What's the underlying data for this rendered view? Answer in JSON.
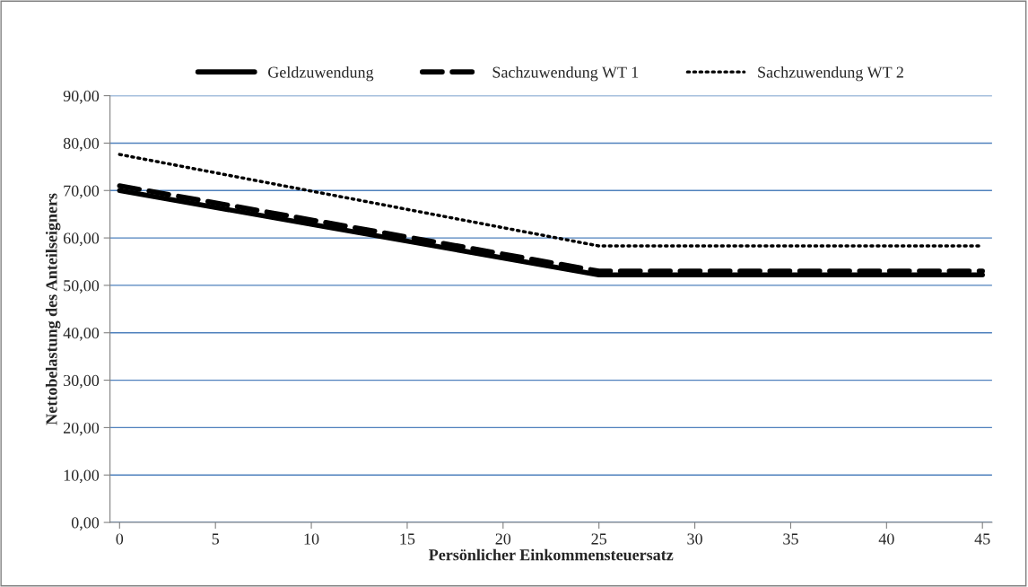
{
  "chart_data": {
    "type": "line",
    "xlabel": "Persönlicher Einkommensteuersatz",
    "ylabel": "Nettobelastung des Anteilseigners",
    "x": [
      0,
      25,
      45
    ],
    "series": [
      {
        "name": "Geldzuwendung",
        "color": "#000000",
        "line_style": "solid",
        "values": [
          70.0,
          52.2,
          52.2
        ]
      },
      {
        "name": "Sachzuwendung WT 1",
        "color": "#000000",
        "line_style": "dashed",
        "values": [
          71.0,
          53.0,
          53.0
        ]
      },
      {
        "name": "Sachzuwendung WT 2",
        "color": "#000000",
        "line_style": "dotted",
        "values": [
          77.6,
          58.3,
          58.3
        ]
      }
    ],
    "xlim": [
      -0.5,
      45.5
    ],
    "xticks": [
      0,
      5,
      10,
      15,
      20,
      25,
      30,
      35,
      40,
      45
    ],
    "ylim": [
      0,
      90
    ],
    "yticks": [
      {
        "value": 0,
        "label": "0,00"
      },
      {
        "value": 10,
        "label": "10,00"
      },
      {
        "value": 20,
        "label": "20,00"
      },
      {
        "value": 30,
        "label": "30,00"
      },
      {
        "value": 40,
        "label": "40,00"
      },
      {
        "value": 50,
        "label": "50,00"
      },
      {
        "value": 60,
        "label": "60,00"
      },
      {
        "value": 70,
        "label": "70,00"
      },
      {
        "value": 80,
        "label": "80,00"
      },
      {
        "value": 90,
        "label": "90,00"
      }
    ],
    "grid": "y",
    "legend": "top",
    "marker": "none"
  }
}
